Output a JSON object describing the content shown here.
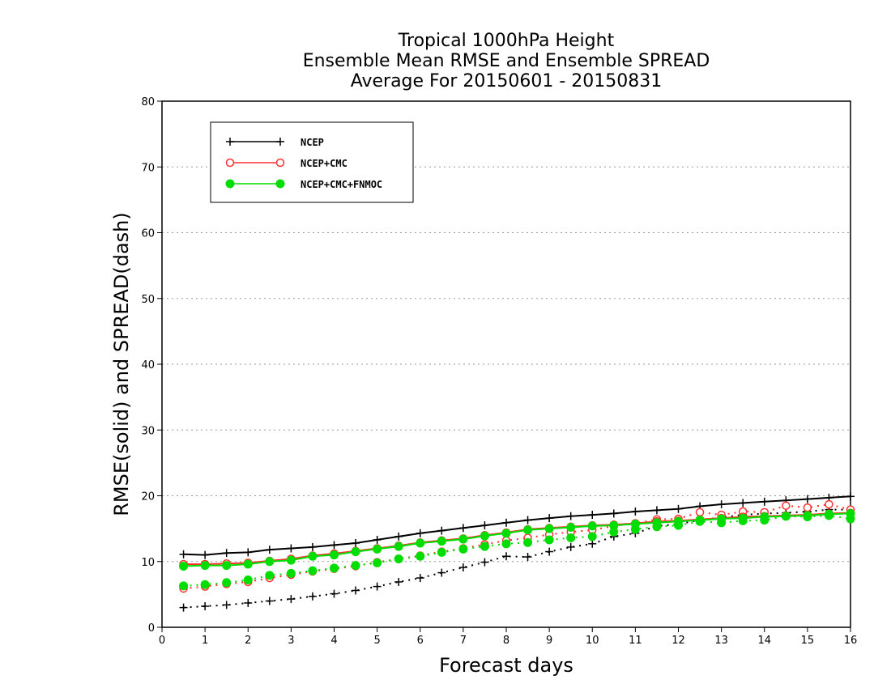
{
  "chart_data": {
    "type": "line",
    "title_lines": [
      "Tropical 1000hPa Height",
      "Ensemble Mean RMSE and Ensemble SPREAD",
      "Average For 20150601 - 20150831"
    ],
    "xlabel": "Forecast days",
    "ylabel": "RMSE(solid) and SPREAD(dash)",
    "xlim": [
      0,
      16
    ],
    "ylim": [
      0,
      80
    ],
    "xticks": [
      0,
      1,
      2,
      3,
      4,
      5,
      6,
      7,
      8,
      9,
      10,
      11,
      12,
      13,
      14,
      15,
      16
    ],
    "yticks": [
      0,
      10,
      20,
      30,
      40,
      50,
      60,
      70,
      80
    ],
    "grid": "horizontal dotted",
    "legend_position": "top-left",
    "x": [
      0.5,
      1,
      1.5,
      2,
      2.5,
      3,
      3.5,
      4,
      4.5,
      5,
      5.5,
      6,
      6.5,
      7,
      7.5,
      8,
      8.5,
      9,
      9.5,
      10,
      10.5,
      11,
      11.5,
      12,
      12.5,
      13,
      13.5,
      14,
      14.5,
      15,
      15.5,
      16
    ],
    "series": [
      {
        "name": "NCEP",
        "color": "#000000",
        "marker": "plus",
        "rmse": [
          11.1,
          11.0,
          11.3,
          11.4,
          11.8,
          12.0,
          12.2,
          12.5,
          12.8,
          13.3,
          13.8,
          14.3,
          14.7,
          15.1,
          15.5,
          15.9,
          16.3,
          16.6,
          16.9,
          17.1,
          17.3,
          17.6,
          17.8,
          18.0,
          18.4,
          18.7,
          18.9,
          19.1,
          19.3,
          19.5,
          19.7,
          19.9
        ],
        "spread": [
          3.0,
          3.2,
          3.4,
          3.7,
          4.0,
          4.3,
          4.7,
          5.1,
          5.6,
          6.2,
          6.9,
          7.5,
          8.3,
          9.1,
          9.9,
          10.8,
          10.7,
          11.5,
          12.2,
          12.7,
          13.8,
          14.3,
          15.4,
          15.7,
          16.3,
          16.7,
          17.1,
          17.3,
          17.4,
          17.6,
          17.9,
          17.9
        ]
      },
      {
        "name": "NCEP+CMC",
        "color": "#ff3030",
        "marker": "open-circle",
        "rmse": [
          9.6,
          9.6,
          9.7,
          9.8,
          10.1,
          10.4,
          10.9,
          11.2,
          11.6,
          12.0,
          12.4,
          12.9,
          13.2,
          13.5,
          14.0,
          14.4,
          14.9,
          15.1,
          15.3,
          15.5,
          15.6,
          15.8,
          16.1,
          16.2,
          16.4,
          16.6,
          16.8,
          16.9,
          17.0,
          17.1,
          17.3,
          17.4
        ],
        "spread": [
          5.9,
          6.2,
          6.6,
          6.9,
          7.5,
          8.0,
          8.5,
          8.9,
          9.3,
          9.9,
          10.4,
          10.9,
          11.5,
          12.0,
          12.6,
          13.2,
          13.6,
          14.1,
          14.5,
          14.8,
          15.4,
          15.8,
          16.4,
          16.5,
          17.5,
          17.1,
          17.6,
          17.5,
          18.5,
          18.2,
          18.7,
          17.9
        ]
      },
      {
        "name": "NCEP+CMC+FNMOC",
        "color": "#00dd00",
        "marker": "filled-circle",
        "rmse": [
          9.3,
          9.4,
          9.4,
          9.6,
          10.0,
          10.2,
          10.8,
          11.0,
          11.5,
          11.9,
          12.3,
          12.8,
          13.1,
          13.4,
          13.9,
          14.3,
          14.8,
          15.0,
          15.2,
          15.4,
          15.5,
          15.7,
          15.9,
          16.1,
          16.3,
          16.5,
          16.6,
          16.8,
          16.9,
          17.0,
          17.2,
          17.3
        ],
        "spread": [
          6.3,
          6.5,
          6.8,
          7.2,
          7.9,
          8.2,
          8.6,
          9.0,
          9.4,
          9.8,
          10.4,
          10.8,
          11.4,
          11.9,
          12.3,
          12.7,
          12.9,
          13.3,
          13.6,
          13.8,
          14.5,
          14.9,
          15.3,
          15.5,
          16.1,
          15.9,
          16.2,
          16.3,
          16.9,
          16.8,
          17.0,
          16.5
        ]
      }
    ]
  }
}
